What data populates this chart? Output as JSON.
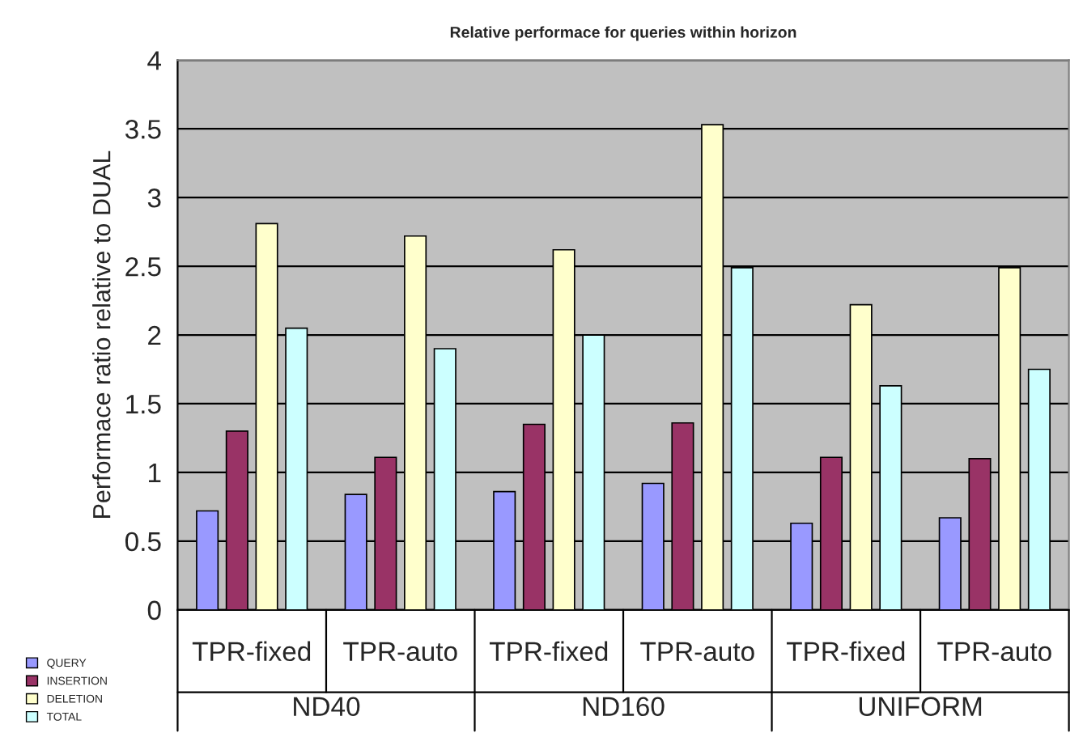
{
  "chart_data": {
    "type": "bar",
    "title": "Relative performace for queries within horizon",
    "ylabel": "Performace ratio relative to DUAL",
    "categories": [
      "TPR-fixed",
      "TPR-auto",
      "TPR-fixed",
      "TPR-auto",
      "TPR-fixed",
      "TPR-auto"
    ],
    "annotations": [
      "ND40",
      "ND160",
      "UNIFORM"
    ],
    "series": [
      {
        "name": "QUERY",
        "color": "#9999ff",
        "values": [
          0.72,
          0.84,
          0.86,
          0.92,
          0.63,
          0.67
        ]
      },
      {
        "name": "INSERTION",
        "color": "#993366",
        "values": [
          1.3,
          1.11,
          1.35,
          1.36,
          1.11,
          1.1
        ]
      },
      {
        "name": "DELETION",
        "color": "#ffffcc",
        "values": [
          2.81,
          2.72,
          2.62,
          3.53,
          2.22,
          2.49
        ]
      },
      {
        "name": "TOTAL",
        "color": "#ccffff",
        "values": [
          2.05,
          1.9,
          2.0,
          2.49,
          1.63,
          1.75
        ]
      }
    ],
    "ylim": [
      0,
      4
    ],
    "yticks": [
      0,
      0.5,
      1,
      1.5,
      2,
      2.5,
      3,
      3.5,
      4
    ],
    "grid": "y",
    "legend": "bottom left"
  }
}
